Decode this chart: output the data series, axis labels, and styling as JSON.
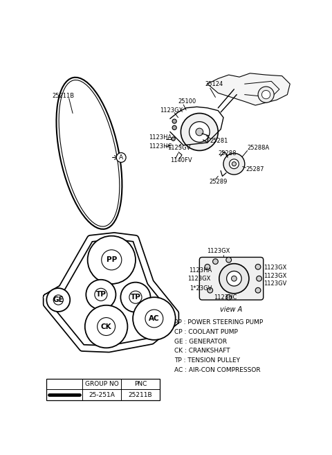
{
  "bg_color": "#ffffff",
  "fig_width": 4.8,
  "fig_height": 6.57,
  "dpi": 100,
  "legend_entries": [
    "PP : POWER STEERING PUMP",
    "CP : COOLANT PUMP",
    "GE : GENERATOR",
    "CK : CRANKSHAFT",
    "TP : TENSION PULLEY",
    "AC : AIR-CON COMPRESSOR"
  ],
  "line_color": "#000000",
  "text_color": "#000000",
  "font_size_label": 6.0,
  "font_size_legend": 6.5,
  "font_size_pulley": 7.5
}
